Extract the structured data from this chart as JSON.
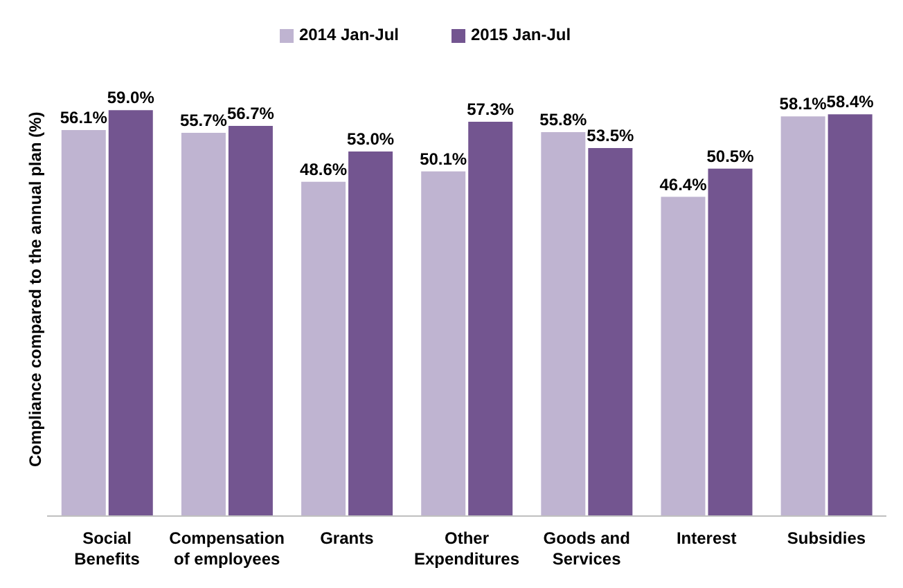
{
  "chart_data": {
    "type": "bar",
    "ylabel": "Compliance compared to the annual plan (%)",
    "categories": [
      "Social Benefits",
      "Compensation of employees",
      "Grants",
      "Other Expenditures",
      "Goods and Services",
      "Interest",
      "Subsidies"
    ],
    "series": [
      {
        "name": "2014 Jan-Jul",
        "color": "#bfb4d1",
        "values": [
          56.1,
          55.7,
          48.6,
          50.1,
          55.8,
          46.4,
          58.1
        ],
        "value_labels": [
          "56.1%",
          "55.7%",
          "48.6%",
          "50.1%",
          "55.8%",
          "46.4%",
          "58.1%"
        ]
      },
      {
        "name": "2015 Jan-Jul",
        "color": "#735590",
        "values": [
          59.0,
          56.7,
          53.0,
          57.3,
          53.5,
          50.5,
          58.4
        ],
        "value_labels": [
          "59.0%",
          "56.7%",
          "53.0%",
          "57.3%",
          "53.5%",
          "50.5%",
          "58.4%"
        ]
      }
    ],
    "legend": "top"
  }
}
